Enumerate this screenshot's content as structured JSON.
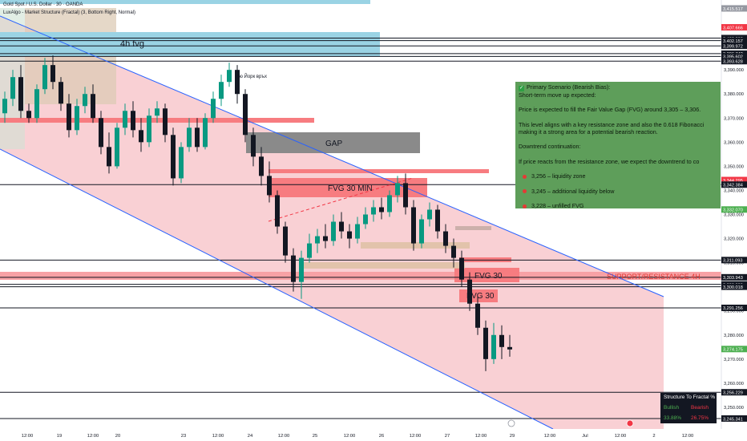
{
  "header": {
    "symbol": "Gold Spot / U.S. Dollar · 30 · OANDA",
    "indicator": "LuxAlgo - Market Structure (Fractal) (3, Bottom Right, Normal)"
  },
  "chart_data": {
    "type": "candlestick",
    "ylim": [
      3241,
      3419
    ],
    "x_ticks": [
      "12:00",
      "19",
      "12:00",
      "20",
      "23",
      "12:00",
      "24",
      "12:00",
      "25",
      "12:00",
      "26",
      "12:00",
      "27",
      "12:00",
      "29",
      "12:00",
      "Jul",
      "12:00",
      "2",
      "12:00"
    ],
    "y_ticks": [
      3250,
      3260,
      3270,
      3280,
      3290,
      3300,
      3310,
      3320,
      3330,
      3340,
      3350,
      3360,
      3370,
      3380,
      3390
    ],
    "zones": [
      {
        "label": "4h fvg",
        "top": 3413,
        "bottom": 3402
      },
      {
        "label": "GAP",
        "top": 3361.4,
        "bottom": 3355.2
      },
      {
        "label": "FVG 30 MIN",
        "top": 3344.5,
        "bottom": 3338.5
      },
      {
        "label": "FVG 30",
        "top": 3305.2,
        "bottom": 3300.2
      },
      {
        "label": "FVG 30",
        "top": 3299.4,
        "bottom": 3294.4
      },
      {
        "label": "SUPPORT/RESISTANCE 4H",
        "top": 3304.5,
        "bottom": 3301.6
      }
    ],
    "channel": {
      "upper": [
        [
          3411,
          3316
        ],
        [
          3347,
          3295
        ]
      ],
      "lower": [
        [
          3399,
          3354
        ],
        [
          3300,
          3239
        ]
      ]
    },
    "annotation": "Ню Йорк връх",
    "price_levels": [
      {
        "value": "3,415.517",
        "color": "#9598a1"
      },
      {
        "value": "3,407.666",
        "color": "#f23645"
      },
      {
        "value": "3,403.202",
        "color": "#131722"
      },
      {
        "value": "3,402.157",
        "color": "#131722"
      },
      {
        "value": "3,399.972",
        "color": "#131722"
      },
      {
        "value": "3,396.742",
        "color": "#131722"
      },
      {
        "value": "3,395.602",
        "color": "#131722"
      },
      {
        "value": "3,393.628",
        "color": "#131722"
      },
      {
        "value": "3,344.295",
        "color": "#f23645"
      },
      {
        "value": "3,342.384",
        "color": "#131722"
      },
      {
        "value": "3,332.070",
        "color": "#4caf50"
      },
      {
        "value": "3,311.093",
        "color": "#131722"
      },
      {
        "value": "3,303.943",
        "color": "#131722"
      },
      {
        "value": "3,300.999",
        "color": "#131722"
      },
      {
        "value": "3,300.018",
        "color": "#131722"
      },
      {
        "value": "3,291.256",
        "color": "#131722"
      },
      {
        "value": "3,274.175",
        "color": "#4caf50"
      },
      {
        "value": "3,256.229",
        "color": "#131722"
      },
      {
        "value": "3,245.341",
        "color": "#131722"
      }
    ],
    "candles": [
      [
        3372,
        3381,
        3368,
        3378
      ],
      [
        3378,
        3390,
        3375,
        3387
      ],
      [
        3387,
        3392,
        3370,
        3373
      ],
      [
        3373,
        3376,
        3368,
        3370
      ],
      [
        3370,
        3384,
        3368,
        3382
      ],
      [
        3382,
        3395,
        3380,
        3392
      ],
      [
        3392,
        3396,
        3382,
        3385
      ],
      [
        3385,
        3387,
        3373,
        3376
      ],
      [
        3376,
        3380,
        3362,
        3365
      ],
      [
        3365,
        3378,
        3363,
        3375
      ],
      [
        3375,
        3383,
        3372,
        3380
      ],
      [
        3380,
        3384,
        3368,
        3370
      ],
      [
        3370,
        3373,
        3355,
        3358
      ],
      [
        3358,
        3364,
        3347,
        3350
      ],
      [
        3350,
        3368,
        3349,
        3366
      ],
      [
        3366,
        3376,
        3363,
        3373
      ],
      [
        3373,
        3377,
        3362,
        3365
      ],
      [
        3365,
        3370,
        3356,
        3360
      ],
      [
        3360,
        3374,
        3358,
        3371
      ],
      [
        3371,
        3377,
        3368,
        3374
      ],
      [
        3374,
        3376,
        3360,
        3363
      ],
      [
        3363,
        3366,
        3342,
        3345
      ],
      [
        3345,
        3360,
        3343,
        3358
      ],
      [
        3358,
        3370,
        3356,
        3366
      ],
      [
        3366,
        3370,
        3356,
        3358
      ],
      [
        3358,
        3372,
        3357,
        3370
      ],
      [
        3370,
        3381,
        3368,
        3378
      ],
      [
        3378,
        3388,
        3375,
        3385
      ],
      [
        3385,
        3393,
        3383,
        3390
      ],
      [
        3390,
        3392,
        3376,
        3380
      ],
      [
        3380,
        3382,
        3360,
        3363
      ],
      [
        3363,
        3366,
        3350,
        3354
      ],
      [
        3354,
        3358,
        3342,
        3346
      ],
      [
        3346,
        3352,
        3335,
        3338
      ],
      [
        3338,
        3340,
        3322,
        3325
      ],
      [
        3325,
        3327,
        3310,
        3313
      ],
      [
        3313,
        3316,
        3298,
        3302
      ],
      [
        3302,
        3315,
        3295,
        3312
      ],
      [
        3312,
        3322,
        3310,
        3318
      ],
      [
        3318,
        3324,
        3314,
        3321
      ],
      [
        3321,
        3326,
        3316,
        3319
      ],
      [
        3319,
        3330,
        3317,
        3327
      ],
      [
        3327,
        3331,
        3320,
        3323
      ],
      [
        3323,
        3326,
        3316,
        3320
      ],
      [
        3320,
        3329,
        3318,
        3326
      ],
      [
        3326,
        3333,
        3324,
        3330
      ],
      [
        3330,
        3336,
        3327,
        3333
      ],
      [
        3333,
        3337,
        3328,
        3331
      ],
      [
        3331,
        3340,
        3329,
        3338
      ],
      [
        3338,
        3346,
        3335,
        3343
      ],
      [
        3343,
        3347,
        3330,
        3333
      ],
      [
        3333,
        3336,
        3315,
        3318
      ],
      [
        3318,
        3330,
        3316,
        3328
      ],
      [
        3328,
        3335,
        3325,
        3332
      ],
      [
        3332,
        3334,
        3320,
        3323
      ],
      [
        3323,
        3326,
        3314,
        3317
      ],
      [
        3317,
        3320,
        3308,
        3312
      ],
      [
        3312,
        3315,
        3300,
        3303
      ],
      [
        3303,
        3306,
        3290,
        3293
      ],
      [
        3293,
        3296,
        3280,
        3283
      ],
      [
        3283,
        3286,
        3265,
        3270
      ],
      [
        3270,
        3285,
        3268,
        3280
      ],
      [
        3280,
        3284,
        3270,
        3275
      ],
      [
        3275,
        3280,
        3271,
        3274
      ]
    ]
  },
  "note": {
    "title": "Primary Scenario (Bearish Bias):",
    "line1": "Short-term move up expected:",
    "line2": "Price is expected to fill the Fair Value Gap (FVG) around 3,305 – 3,306.",
    "line3": "This level aligns with a key resistance zone and also the 0.618 Fibonacci",
    "line4": "making it a strong area for a potential bearish reaction.",
    "line5": "Downtrend continuation:",
    "line6": "If price reacts from the resistance zone, we expect the downtrend to co",
    "bullet1": "3,256 – liquidity zone",
    "bullet2": "3,245 – additional liquidity below",
    "bullet3": "3,228 – unfilled FVG"
  },
  "legend": {
    "title": "Structure To Fractal %",
    "bullish": "Bullish",
    "bearish": "Bearish",
    "bull_pct": "33.88%",
    "bear_pct": "26.75%"
  },
  "colors": {
    "channel_fill": "#f8c8cc",
    "channel_line": "#2962ff",
    "fvg_red": "#f77c80",
    "gap_gray": "#8a8a8a",
    "fvg_4h": "#9ad3e4",
    "bull": "#089981",
    "bear": "#131722"
  }
}
